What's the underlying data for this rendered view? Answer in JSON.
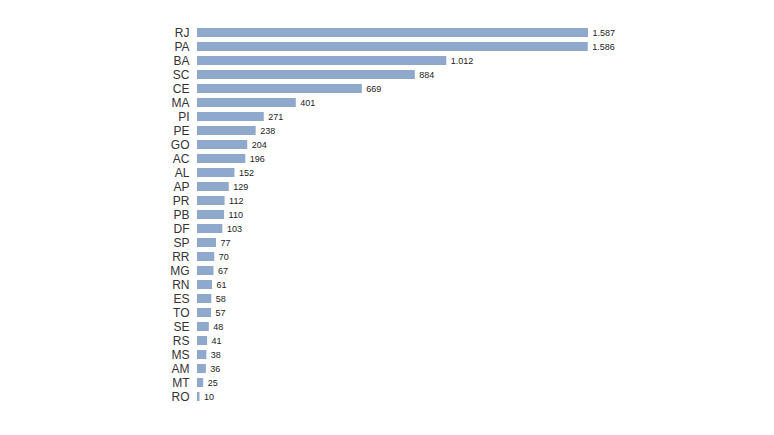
{
  "chart_data": {
    "type": "bar",
    "orientation": "horizontal",
    "categories": [
      "RJ",
      "PA",
      "BA",
      "SC",
      "CE",
      "MA",
      "PI",
      "PE",
      "GO",
      "AC",
      "AL",
      "AP",
      "PR",
      "PB",
      "DF",
      "SP",
      "RR",
      "MG",
      "RN",
      "ES",
      "TO",
      "SE",
      "RS",
      "MS",
      "AM",
      "MT",
      "RO"
    ],
    "values": [
      1587,
      1586,
      1012,
      884,
      669,
      401,
      271,
      238,
      204,
      196,
      152,
      129,
      112,
      110,
      103,
      77,
      70,
      67,
      61,
      58,
      57,
      48,
      41,
      38,
      36,
      25,
      10
    ],
    "value_labels": [
      "1.587",
      "1.586",
      "1.012",
      "884",
      "669",
      "401",
      "271",
      "238",
      "204",
      "196",
      "152",
      "129",
      "112",
      "110",
      "103",
      "77",
      "70",
      "67",
      "61",
      "58",
      "57",
      "48",
      "41",
      "38",
      "36",
      "25",
      "10"
    ],
    "color": "#8fa9cc",
    "data_labels": true,
    "tick_labels": "y",
    "grid": false
  }
}
